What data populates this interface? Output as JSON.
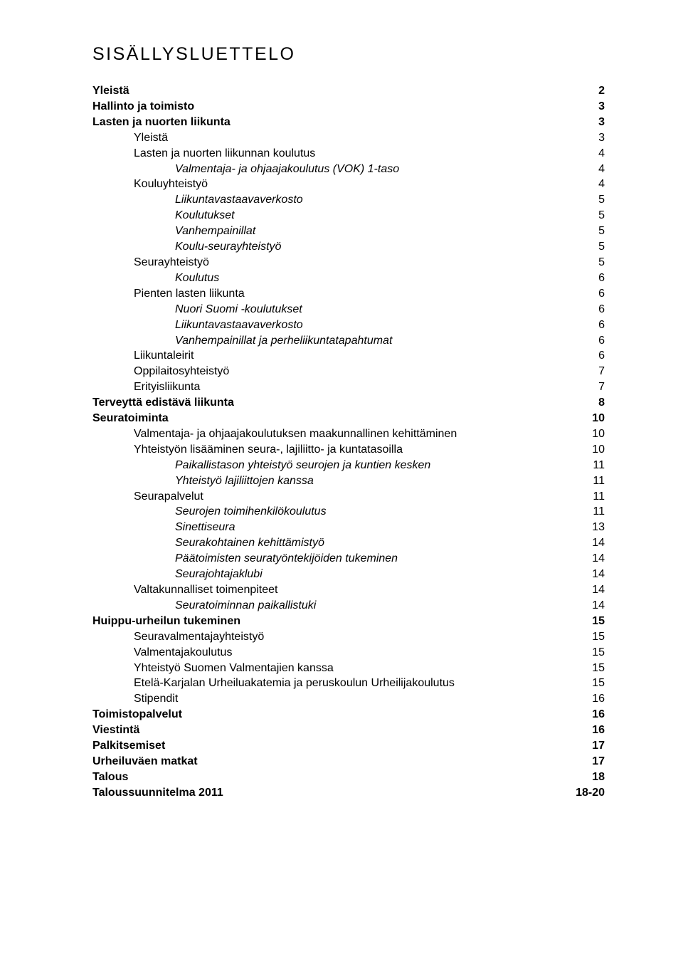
{
  "title": "SISÄLLYSLUETTELO",
  "font": {
    "title_size_pt": 19,
    "body_size_pt": 12
  },
  "colors": {
    "text": "#000000",
    "background": "#ffffff"
  },
  "entries": [
    {
      "label": "Yleistä",
      "page": "2",
      "indent": 0,
      "bold": true,
      "italic": false
    },
    {
      "label": "Hallinto ja toimisto",
      "page": "3",
      "indent": 0,
      "bold": true,
      "italic": false
    },
    {
      "label": "Lasten ja nuorten liikunta",
      "page": "3",
      "indent": 0,
      "bold": true,
      "italic": false
    },
    {
      "label": "Yleistä",
      "page": "3",
      "indent": 1,
      "bold": false,
      "italic": false
    },
    {
      "label": "Lasten ja nuorten liikunnan koulutus",
      "page": "4",
      "indent": 1,
      "bold": false,
      "italic": false
    },
    {
      "label": "Valmentaja- ja ohjaajakoulutus (VOK) 1-taso",
      "page": "4",
      "indent": 2,
      "bold": false,
      "italic": true
    },
    {
      "label": "Kouluyhteistyö",
      "page": "4",
      "indent": 1,
      "bold": false,
      "italic": false
    },
    {
      "label": "Liikuntavastaavaverkosto",
      "page": "5",
      "indent": 2,
      "bold": false,
      "italic": true
    },
    {
      "label": "Koulutukset",
      "page": "5",
      "indent": 2,
      "bold": false,
      "italic": true
    },
    {
      "label": "Vanhempainillat",
      "page": "5",
      "indent": 2,
      "bold": false,
      "italic": true
    },
    {
      "label": "Koulu-seurayhteistyö",
      "page": "5",
      "indent": 2,
      "bold": false,
      "italic": true
    },
    {
      "label": "Seurayhteistyö",
      "page": "5",
      "indent": 1,
      "bold": false,
      "italic": false
    },
    {
      "label": "Koulutus",
      "page": "6",
      "indent": 2,
      "bold": false,
      "italic": true
    },
    {
      "label": "Pienten lasten liikunta",
      "page": "6",
      "indent": 1,
      "bold": false,
      "italic": false
    },
    {
      "label": "Nuori Suomi -koulutukset",
      "page": "6",
      "indent": 2,
      "bold": false,
      "italic": true
    },
    {
      "label": "Liikuntavastaavaverkosto",
      "page": "6",
      "indent": 2,
      "bold": false,
      "italic": true
    },
    {
      "label": "Vanhempainillat ja perheliikuntatapahtumat",
      "page": "6",
      "indent": 2,
      "bold": false,
      "italic": true
    },
    {
      "label": "Liikuntaleirit",
      "page": "6",
      "indent": 1,
      "bold": false,
      "italic": false
    },
    {
      "label": "Oppilaitosyhteistyö",
      "page": "7",
      "indent": 1,
      "bold": false,
      "italic": false
    },
    {
      "label": "Erityisliikunta",
      "page": "7",
      "indent": 1,
      "bold": false,
      "italic": false
    },
    {
      "label": "Terveyttä edistävä liikunta",
      "page": "8",
      "indent": 0,
      "bold": true,
      "italic": false
    },
    {
      "label": "Seuratoiminta",
      "page": "10",
      "indent": 0,
      "bold": true,
      "italic": false
    },
    {
      "label": "Valmentaja- ja ohjaajakoulutuksen maakunnallinen kehittäminen",
      "page": "10",
      "indent": 1,
      "bold": false,
      "italic": false
    },
    {
      "label": "Yhteistyön lisääminen seura-, lajiliitto- ja kuntatasoilla",
      "page": "10",
      "indent": 1,
      "bold": false,
      "italic": false
    },
    {
      "label": "Paikallistason yhteistyö seurojen ja kuntien kesken",
      "page": "11",
      "indent": 2,
      "bold": false,
      "italic": true
    },
    {
      "label": "Yhteistyö lajiliittojen kanssa",
      "page": "11",
      "indent": 2,
      "bold": false,
      "italic": true
    },
    {
      "label": "Seurapalvelut",
      "page": "11",
      "indent": 1,
      "bold": false,
      "italic": false
    },
    {
      "label": "Seurojen toimihenkilökoulutus",
      "page": "11",
      "indent": 2,
      "bold": false,
      "italic": true
    },
    {
      "label": "Sinettiseura",
      "page": "13",
      "indent": 2,
      "bold": false,
      "italic": true
    },
    {
      "label": "Seurakohtainen kehittämistyö",
      "page": "14",
      "indent": 2,
      "bold": false,
      "italic": true
    },
    {
      "label": "Päätoimisten seuratyöntekijöiden tukeminen",
      "page": "14",
      "indent": 2,
      "bold": false,
      "italic": true
    },
    {
      "label": "Seurajohtajaklubi",
      "page": "14",
      "indent": 2,
      "bold": false,
      "italic": true
    },
    {
      "label": "Valtakunnalliset toimenpiteet",
      "page": "14",
      "indent": 1,
      "bold": false,
      "italic": false
    },
    {
      "label": "Seuratoiminnan paikallistuki",
      "page": "14",
      "indent": 2,
      "bold": false,
      "italic": true
    },
    {
      "label": "Huippu-urheilun tukeminen",
      "page": "15",
      "indent": 0,
      "bold": true,
      "italic": false
    },
    {
      "label": "Seuravalmentajayhteistyö",
      "page": "15",
      "indent": 1,
      "bold": false,
      "italic": false
    },
    {
      "label": "Valmentajakoulutus",
      "page": "15",
      "indent": 1,
      "bold": false,
      "italic": false
    },
    {
      "label": "Yhteistyö Suomen Valmentajien kanssa",
      "page": "15",
      "indent": 1,
      "bold": false,
      "italic": false
    },
    {
      "label": "Etelä-Karjalan Urheiluakatemia ja peruskoulun Urheilijakoulutus",
      "page": "15",
      "indent": 1,
      "bold": false,
      "italic": false
    },
    {
      "label": "Stipendit",
      "page": "16",
      "indent": 1,
      "bold": false,
      "italic": false
    },
    {
      "label": "Toimistopalvelut",
      "page": "16",
      "indent": 0,
      "bold": true,
      "italic": false
    },
    {
      "label": "Viestintä",
      "page": "16",
      "indent": 0,
      "bold": true,
      "italic": false
    },
    {
      "label": "Palkitsemiset",
      "page": "17",
      "indent": 0,
      "bold": true,
      "italic": false
    },
    {
      "label": "Urheiluväen matkat",
      "page": "17",
      "indent": 0,
      "bold": true,
      "italic": false
    },
    {
      "label": "Talous",
      "page": "18",
      "indent": 0,
      "bold": true,
      "italic": false
    },
    {
      "label": "Taloussuunnitelma 2011",
      "page": "18-20",
      "indent": 0,
      "bold": true,
      "italic": false
    }
  ]
}
